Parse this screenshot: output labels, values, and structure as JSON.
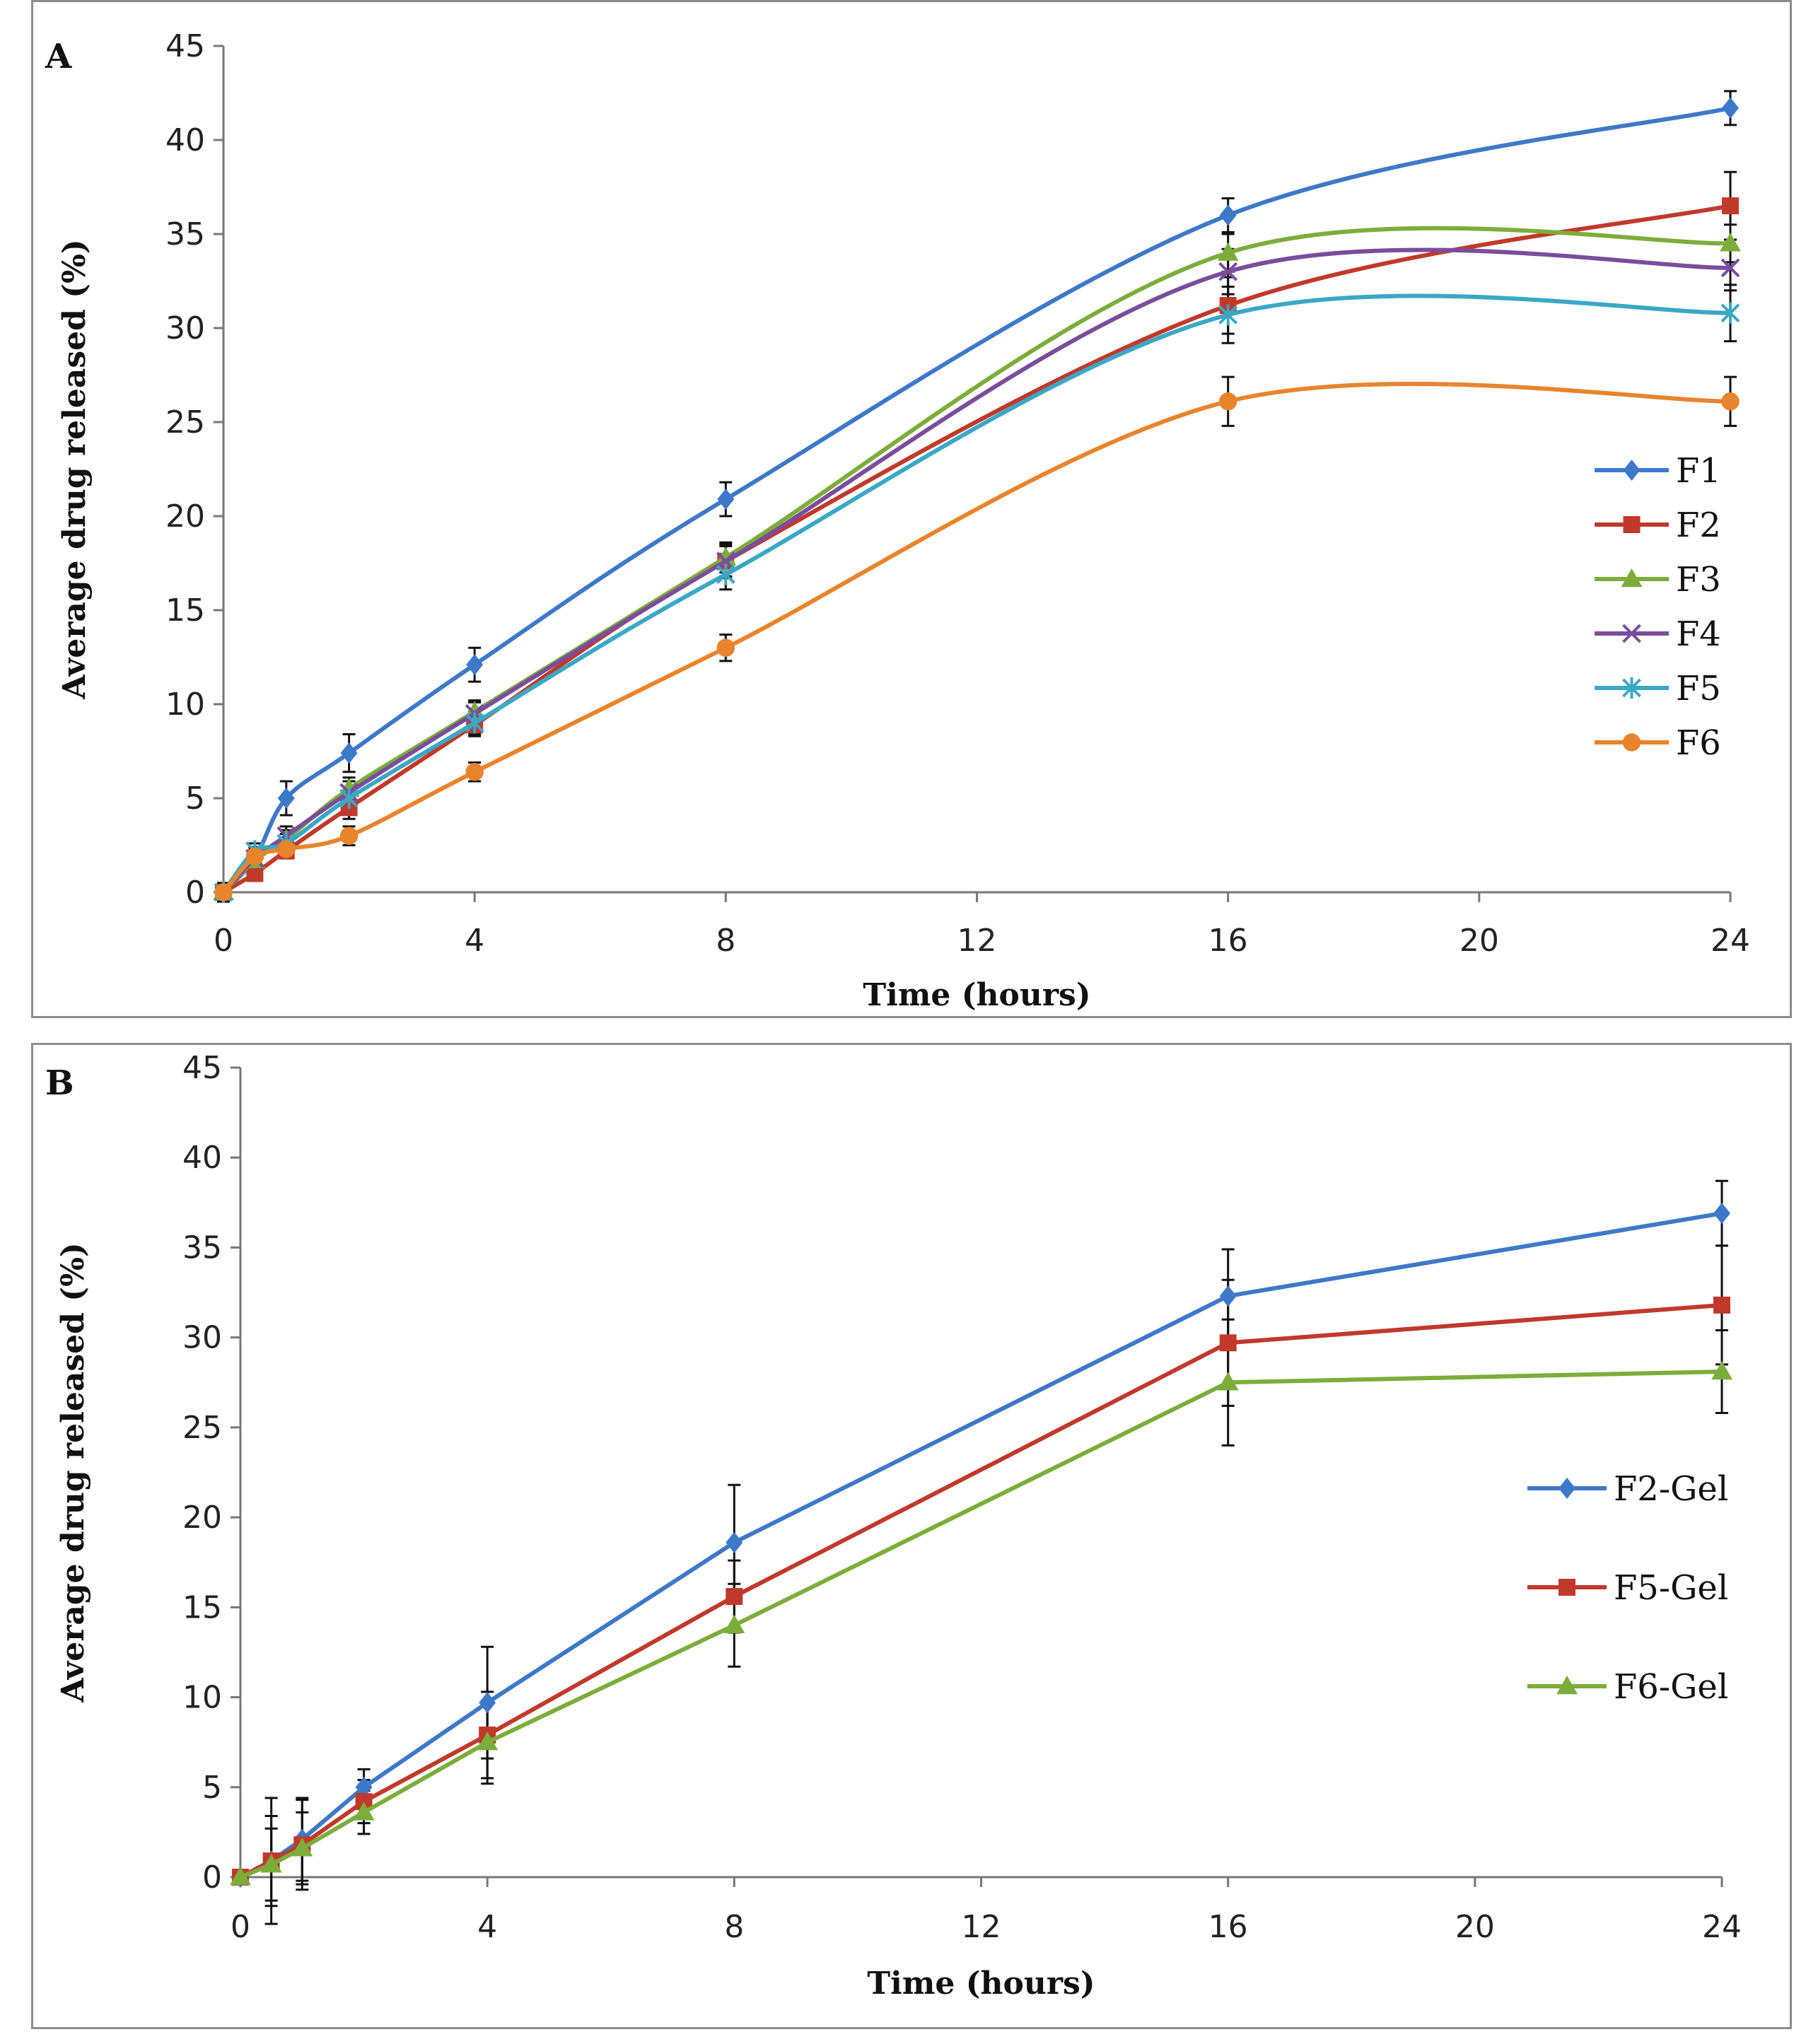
{
  "chart_data": [
    {
      "type": "line",
      "panel_label": "A",
      "xlabel": "Time (hours)",
      "ylabel": "Average drug released (%)",
      "xlim": [
        0,
        24
      ],
      "ylim": [
        0,
        45
      ],
      "xticks": [
        "0",
        "4",
        "8",
        "12",
        "16",
        "20",
        "24"
      ],
      "yticks": [
        "0",
        "5",
        "10",
        "15",
        "20",
        "25",
        "30",
        "35",
        "40",
        "45"
      ],
      "x": [
        0,
        0.5,
        1,
        2,
        4,
        8,
        16,
        24
      ],
      "legend_position": "right",
      "series": [
        {
          "name": "F1",
          "color": "#3e78c8",
          "marker": "diamond",
          "values": [
            0,
            1.8,
            5.0,
            7.4,
            12.1,
            20.9,
            36.0,
            41.7
          ],
          "errors": [
            0.5,
            0.6,
            0.9,
            1.0,
            0.9,
            0.9,
            0.9,
            0.9
          ]
        },
        {
          "name": "F2",
          "color": "#c0392b",
          "marker": "square",
          "values": [
            0,
            1.0,
            2.2,
            4.5,
            8.9,
            17.6,
            31.2,
            36.5
          ],
          "errors": [
            0.3,
            0.4,
            0.4,
            0.6,
            0.6,
            0.9,
            1.5,
            1.8
          ]
        },
        {
          "name": "F3",
          "color": "#7cad3a",
          "marker": "triangle",
          "values": [
            0,
            1.7,
            2.8,
            5.5,
            9.6,
            17.8,
            34.0,
            34.5
          ],
          "errors": [
            0.3,
            0.4,
            0.5,
            0.6,
            0.6,
            0.8,
            1.0,
            1.0
          ]
        },
        {
          "name": "F4",
          "color": "#7a4d9c",
          "marker": "x",
          "values": [
            0,
            1.8,
            3.0,
            5.3,
            9.5,
            17.6,
            33.0,
            33.2
          ],
          "errors": [
            0.3,
            0.4,
            0.5,
            0.6,
            0.6,
            0.8,
            1.2,
            1.2
          ]
        },
        {
          "name": "F5",
          "color": "#3aa8c4",
          "marker": "star",
          "values": [
            0,
            2.2,
            2.6,
            5.0,
            9.0,
            16.9,
            30.7,
            30.8
          ],
          "errors": [
            0.3,
            0.4,
            0.5,
            0.6,
            0.6,
            0.8,
            1.5,
            1.5
          ]
        },
        {
          "name": "F6",
          "color": "#e8842c",
          "marker": "circle",
          "values": [
            0,
            1.9,
            2.3,
            3.0,
            6.4,
            13.0,
            26.1,
            26.1
          ],
          "errors": [
            0.3,
            0.4,
            0.4,
            0.5,
            0.5,
            0.7,
            1.3,
            1.3
          ]
        }
      ]
    },
    {
      "type": "line",
      "panel_label": "B",
      "xlabel": "Time (hours)",
      "ylabel": "Average drug released (%)",
      "xlim": [
        0,
        24
      ],
      "ylim": [
        0,
        45
      ],
      "xticks": [
        "0",
        "4",
        "8",
        "12",
        "16",
        "20",
        "24"
      ],
      "yticks": [
        "0",
        "5",
        "10",
        "15",
        "20",
        "25",
        "30",
        "35",
        "40",
        "45"
      ],
      "x": [
        0,
        0.5,
        1,
        2,
        4,
        8,
        16,
        24
      ],
      "legend_position": "right",
      "series": [
        {
          "name": "F2-Gel",
          "color": "#3e78c8",
          "marker": "diamond",
          "values": [
            0,
            0.9,
            2.1,
            5.0,
            9.7,
            18.6,
            32.3,
            36.9
          ],
          "errors": [
            0.3,
            3.5,
            2.3,
            1.0,
            3.1,
            3.2,
            2.6,
            1.8
          ]
        },
        {
          "name": "F5-Gel",
          "color": "#c0392b",
          "marker": "square",
          "values": [
            0,
            0.9,
            1.8,
            4.2,
            7.9,
            15.6,
            29.7,
            31.8
          ],
          "errors": [
            0.3,
            2.5,
            2.5,
            1.2,
            2.4,
            2.0,
            3.5,
            3.3
          ]
        },
        {
          "name": "F6-Gel",
          "color": "#7cad3a",
          "marker": "triangle",
          "values": [
            0,
            0.7,
            1.6,
            3.6,
            7.5,
            14.0,
            27.5,
            28.1
          ],
          "errors": [
            0.3,
            2.0,
            2.0,
            1.2,
            2.3,
            2.3,
            3.5,
            2.3
          ]
        }
      ]
    }
  ]
}
